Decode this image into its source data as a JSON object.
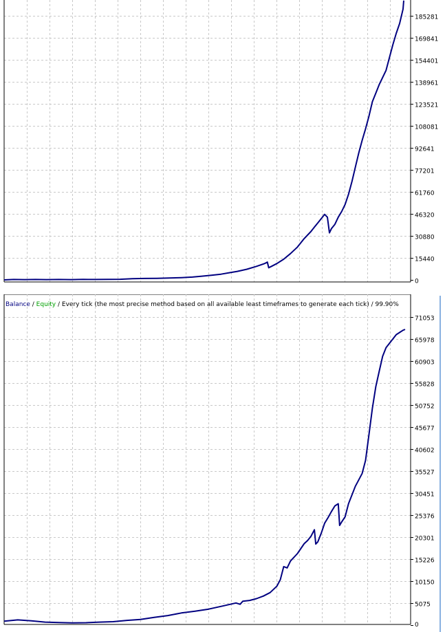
{
  "chart_data": [
    {
      "type": "line",
      "ylim": [
        0,
        196000
      ],
      "y_ticks": [
        "185281",
        "169841",
        "154401",
        "138961",
        "123521",
        "108081",
        "92641",
        "77201",
        "61760",
        "46320",
        "30880",
        "15440",
        "0"
      ],
      "x": [
        0,
        14,
        30,
        46,
        62,
        80,
        98,
        116,
        134,
        152,
        170,
        188,
        206,
        224,
        242,
        260,
        276,
        290,
        304,
        318,
        330,
        342,
        356,
        370,
        382,
        386,
        388,
        390,
        392,
        400,
        410,
        420,
        430,
        440,
        450,
        455,
        460,
        465,
        470,
        474,
        477,
        480,
        485,
        490,
        495,
        500,
        505,
        510,
        515,
        520,
        525,
        530,
        535,
        540,
        545,
        550,
        555,
        560,
        565,
        570,
        575,
        580,
        585,
        586
      ],
      "series": [
        {
          "values": [
            0,
            300,
            200,
            300,
            200,
            300,
            200,
            350,
            300,
            400,
            450,
            800,
            1000,
            1100,
            1300,
            1600,
            2000,
            2600,
            3300,
            4000,
            5000,
            6000,
            7500,
            9500,
            11500,
            12500,
            8500,
            9000,
            9500,
            11500,
            14500,
            18500,
            23000,
            29000,
            34000,
            37000,
            40000,
            43000,
            46000,
            44000,
            33000,
            36000,
            39000,
            44000,
            48000,
            53000,
            60000,
            69000,
            79000,
            89000,
            98000,
            106000,
            115000,
            125000,
            131000,
            137000,
            142000,
            147000,
            156000,
            165000,
            173000,
            180000,
            190000,
            196000
          ]
        }
      ]
    },
    {
      "type": "line",
      "legend": {
        "balance_label": "Balance",
        "separator": " / ",
        "equity_label": "Equity",
        "suffix": " / Every tick (the most precise method based on all available least timeframes to generate each tick) / 99.90%",
        "balance_color": "#000080",
        "equity_color": "#00a000"
      },
      "ylim": [
        0,
        73000
      ],
      "y_ticks": [
        "71053",
        "65978",
        "60903",
        "55828",
        "50752",
        "45677",
        "40602",
        "35527",
        "30451",
        "25376",
        "20301",
        "15226",
        "10150",
        "5075",
        "0"
      ],
      "x": [
        0,
        20,
        40,
        60,
        80,
        100,
        120,
        140,
        160,
        180,
        200,
        220,
        240,
        260,
        280,
        300,
        320,
        340,
        346,
        350,
        360,
        370,
        380,
        390,
        400,
        405,
        410,
        415,
        420,
        430,
        440,
        445,
        450,
        455,
        457,
        460,
        465,
        470,
        475,
        480,
        485,
        490,
        492,
        495,
        500,
        505,
        510,
        515,
        520,
        525,
        530,
        535,
        540,
        545,
        550,
        555,
        560,
        565,
        570,
        575,
        580,
        585,
        588
      ],
      "series": [
        {
          "values": [
            900,
            1200,
            1000,
            700,
            600,
            500,
            550,
            700,
            800,
            1100,
            1300,
            1800,
            2200,
            2800,
            3200,
            3700,
            4400,
            5100,
            4800,
            5500,
            5700,
            6100,
            6700,
            7500,
            9000,
            10500,
            13500,
            13200,
            14800,
            16500,
            18800,
            19500,
            20500,
            22000,
            18700,
            19200,
            21200,
            23500,
            24800,
            26200,
            27500,
            28000,
            23000,
            23800,
            25000,
            28000,
            30000,
            32000,
            33500,
            35000,
            38000,
            44000,
            50000,
            55000,
            58500,
            62000,
            64000,
            65000,
            66000,
            67000,
            67500,
            68000,
            68200
          ]
        }
      ]
    }
  ]
}
